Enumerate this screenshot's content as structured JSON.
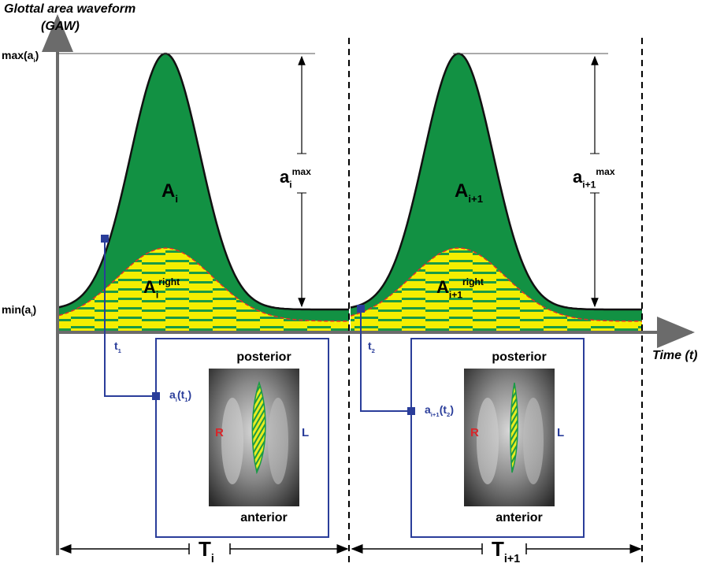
{
  "axis": {
    "y_title": [
      "Glottal area waveform",
      "(GAW)"
    ],
    "x_title": "Time (t)",
    "max_label": [
      {
        "t": "max(a"
      },
      {
        "sub": "i"
      },
      {
        "t": ")"
      }
    ],
    "min_label": [
      {
        "t": "min(a"
      },
      {
        "sub": "i"
      },
      {
        "t": ")"
      }
    ]
  },
  "cycles": [
    {
      "area": [
        {
          "t": "A"
        },
        {
          "sub": "i"
        }
      ],
      "area_right": [
        {
          "t": "A"
        },
        {
          "sub": "i"
        },
        {
          "sup": "right"
        }
      ],
      "amplitude": [
        {
          "t": "a"
        },
        {
          "sub": "i"
        },
        {
          "sup": "max"
        }
      ],
      "time_point": [
        {
          "t": "t"
        },
        {
          "sub": "1"
        }
      ],
      "point_value": [
        {
          "t": "a"
        },
        {
          "sub": "i"
        },
        {
          "t": "(t"
        },
        {
          "sub": "1"
        },
        {
          "t": ")"
        }
      ],
      "period": [
        {
          "t": "T"
        },
        {
          "sub": "i"
        }
      ],
      "image": {
        "top": "posterior",
        "bottom": "anterior",
        "left": "R",
        "right": "L"
      }
    },
    {
      "area": [
        {
          "t": "A"
        },
        {
          "sub": "i+1"
        }
      ],
      "area_right": [
        {
          "t": "A"
        },
        {
          "sub": "i+1"
        },
        {
          "sup": "right"
        }
      ],
      "amplitude": [
        {
          "t": "a"
        },
        {
          "sub": "i+1"
        },
        {
          "sup": "max"
        }
      ],
      "time_point": [
        {
          "t": "t"
        },
        {
          "sub": "2"
        }
      ],
      "point_value": [
        {
          "t": "a"
        },
        {
          "sub": "i+1"
        },
        {
          "t": "(t"
        },
        {
          "sub": "2"
        },
        {
          "t": ")"
        }
      ],
      "period": [
        {
          "t": "T"
        },
        {
          "sub": "i+1"
        }
      ],
      "image": {
        "top": "posterior",
        "bottom": "anterior",
        "left": "R",
        "right": "L"
      }
    }
  ]
}
